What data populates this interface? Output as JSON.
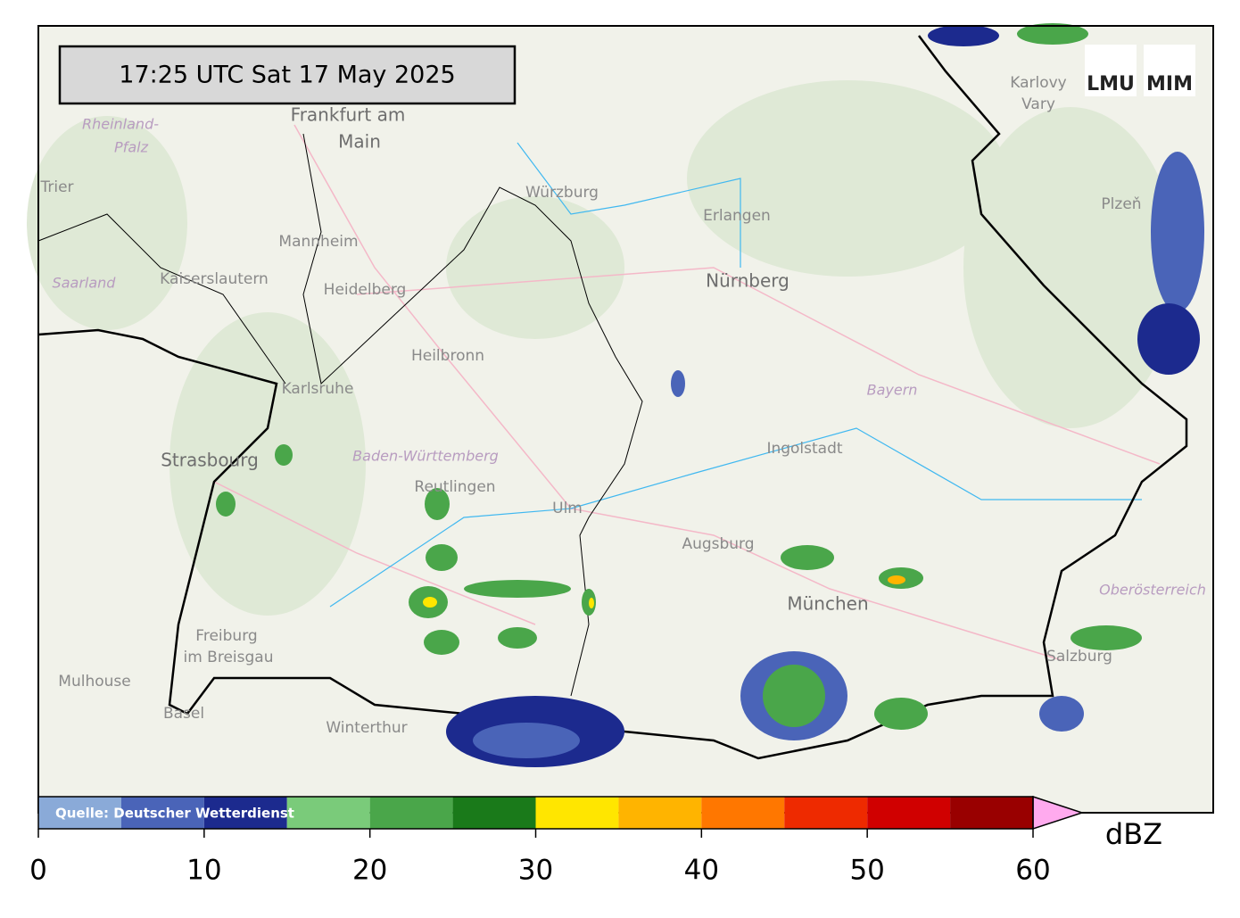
{
  "timestamp": "17:25 UTC  Sat 17 May 2025",
  "logo": {
    "left": "LMU",
    "right": "MIM"
  },
  "source": "Quelle: Deutscher Wetterdienst",
  "places": [
    "Frankfurt am",
    "Main",
    "Rheinland-",
    "Pfalz",
    "Trier",
    "Würzburg",
    "Erlangen",
    "Nürnberg",
    "Mannheim",
    "Kaiserslautern",
    "Heidelberg",
    "Saarland",
    "Karlsruhe",
    "Heilbronn",
    "Bayern",
    "Ingolstadt",
    "Strasbourg",
    "Baden-Württemberg",
    "Reutlingen",
    "Ulm",
    "Augsburg",
    "München",
    "Oberösterreich",
    "Freiburg",
    "im Breisgau",
    "Mulhouse",
    "Basel",
    "Winterthur",
    "Salzburg",
    "Karlovy",
    "Vary",
    "Plzeň"
  ],
  "colorbar": {
    "label": "dBZ",
    "lim": [
      0,
      60
    ],
    "ticks": [
      0,
      10,
      20,
      30,
      40,
      50,
      60
    ],
    "bounds": [
      0,
      5,
      10,
      15,
      20,
      25,
      30,
      35,
      40,
      45,
      50,
      55,
      60
    ],
    "colors": [
      "#8aaad8",
      "#4a64b8",
      "#1c2a8e",
      "#7acb7a",
      "#4aa64a",
      "#1a7a1a",
      "#ffe600",
      "#ffb400",
      "#ff7700",
      "#ee2a00",
      "#d00000",
      "#990000"
    ],
    "extend_color": "#ffaaee"
  }
}
